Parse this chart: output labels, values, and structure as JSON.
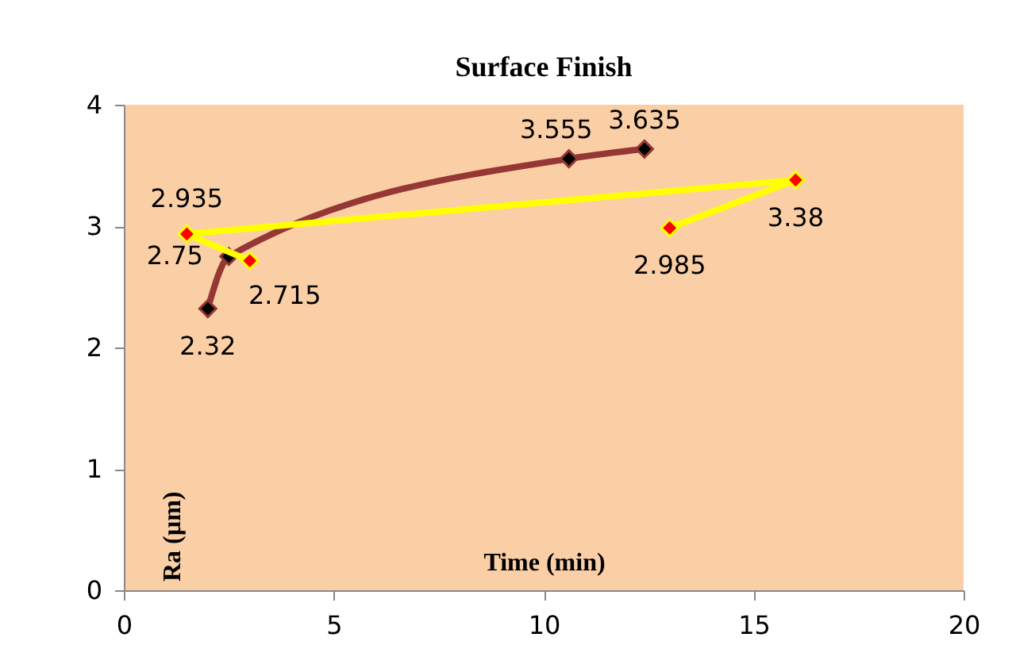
{
  "chart_data": {
    "type": "line",
    "title": "Surface Finish",
    "xlabel": "Time (min)",
    "ylabel": "Ra (µm)",
    "xlim": [
      0,
      20
    ],
    "xticks": [
      0,
      5,
      10,
      15,
      20
    ],
    "ylim": [
      0,
      4
    ],
    "yticks": [
      0,
      1,
      2,
      3,
      4
    ],
    "grid": false,
    "marker": "diamond",
    "data_labels": true,
    "series": [
      {
        "color": "#953735",
        "x": [
          2,
          2.5,
          10.6,
          12.4
        ],
        "values": [
          2.32,
          2.75,
          3.555,
          3.635
        ]
      },
      {
        "color": "#ffff00",
        "x": [
          3,
          1.5,
          16,
          13
        ],
        "values": [
          2.715,
          2.935,
          3.38,
          2.985
        ]
      }
    ]
  }
}
